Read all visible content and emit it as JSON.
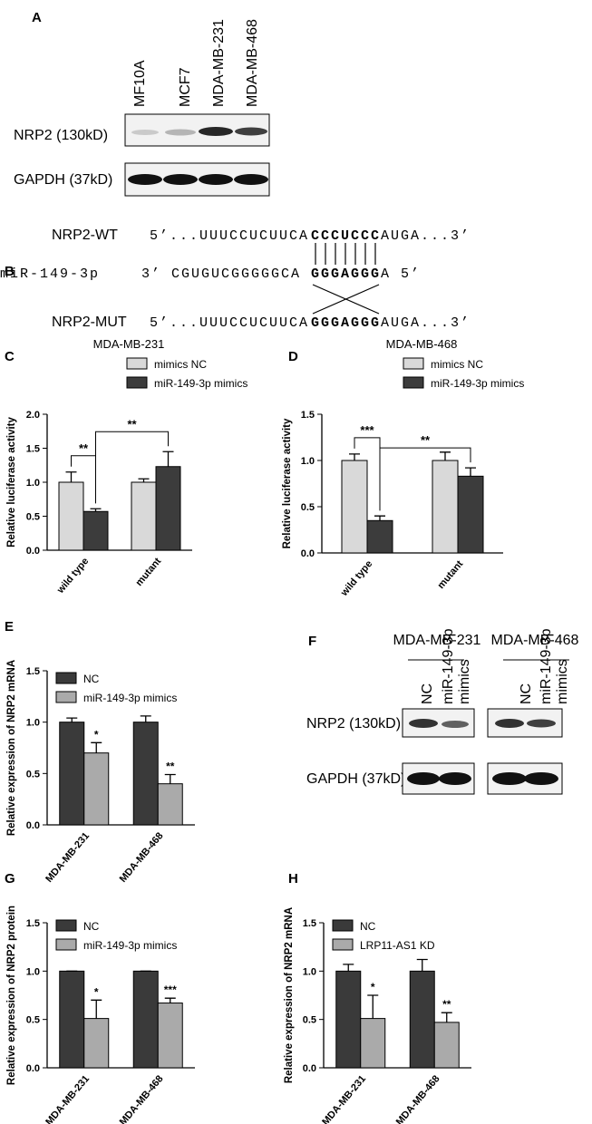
{
  "panel_labels": [
    "A",
    "B",
    "C",
    "D",
    "E",
    "F",
    "G",
    "H"
  ],
  "blot_a": {
    "lanes": [
      "MF10A",
      "MCF7",
      "MDA-MB-231",
      "MDA-MB-468"
    ],
    "rows": [
      "NRP2 (130kD)",
      "GAPDH (37kD)"
    ]
  },
  "sequences": {
    "wt": {
      "name": "NRP2-WT",
      "parts": [
        "5’...UUUCCUCUUCA",
        "CCCUCCC",
        "AUGA...3’"
      ]
    },
    "mir": {
      "name": "miR-149-3p",
      "parts": [
        "3’  CGUGUCGGGGGCA",
        "GGGAGGG",
        "A  5’"
      ]
    },
    "mut": {
      "name": "NRP2-MUT",
      "parts": [
        "5’...UUUCCUCUUCA",
        "GGGAGGG",
        "AUGA...3’"
      ]
    }
  },
  "blot_f": {
    "groups": [
      "MDA-MB-231",
      "MDA-MB-468"
    ],
    "lanes": [
      [
        "NC"
      ],
      [
        "miR-149-3p",
        "mimics"
      ]
    ],
    "rows": [
      "NRP2 (130kD)",
      "GAPDH (37kD)"
    ]
  },
  "chart_data": [
    {
      "type": "bar",
      "title": "MDA-MB-231",
      "y_label": "Relative luciferase activity",
      "categories": [
        "wild type",
        "mutant"
      ],
      "series": [
        {
          "name": "mimics NC",
          "color": "#d9d9d9",
          "values": [
            1.0,
            1.0
          ],
          "errors": [
            0.15,
            0.05
          ]
        },
        {
          "name": "miR-149-3p mimics",
          "color": "#3c3c3c",
          "values": [
            0.57,
            1.23
          ],
          "errors": [
            0.04,
            0.22
          ]
        }
      ],
      "annotations": [
        "**",
        "**"
      ],
      "ylim": [
        0,
        2
      ],
      "yticks": [
        {
          "value": 0,
          "label": "0.0"
        },
        {
          "value": 0.5,
          "label": "0.5"
        },
        {
          "value": 1,
          "label": "1.0"
        },
        {
          "value": 1.5,
          "label": "1.5"
        },
        {
          "value": 2,
          "label": "2.0"
        }
      ]
    },
    {
      "type": "bar",
      "title": "MDA-MB-468",
      "y_label": "Relative luciferase activity",
      "categories": [
        "wild type",
        "mutant"
      ],
      "series": [
        {
          "name": "mimics NC",
          "color": "#d9d9d9",
          "values": [
            1.0,
            1.0
          ],
          "errors": [
            0.07,
            0.09
          ]
        },
        {
          "name": "miR-149-3p mimics",
          "color": "#3c3c3c",
          "values": [
            0.35,
            0.83
          ],
          "errors": [
            0.05,
            0.09
          ]
        }
      ],
      "annotations": [
        "***",
        "**"
      ],
      "ylim": [
        0,
        1.5
      ],
      "yticks": [
        {
          "value": 0,
          "label": "0.0"
        },
        {
          "value": 0.5,
          "label": "0.5"
        },
        {
          "value": 1,
          "label": "1.0"
        },
        {
          "value": 1.5,
          "label": "1.5"
        }
      ]
    },
    {
      "type": "bar",
      "y_label": "Relative expression of NRP2 mRNA",
      "categories": [
        "MDA-MB-231",
        "MDA-MB-468"
      ],
      "series": [
        {
          "name": "NC",
          "color": "#3a3a3a",
          "values": [
            1.0,
            1.0
          ],
          "errors": [
            0.04,
            0.06
          ]
        },
        {
          "name": "miR-149-3p mimics",
          "color": "#aaaaaa",
          "values": [
            0.7,
            0.4
          ],
          "errors": [
            0.1,
            0.09
          ],
          "annotations": [
            "*",
            "**"
          ]
        }
      ],
      "ylim": [
        0,
        1.5
      ],
      "yticks": [
        {
          "value": 0,
          "label": "0.0"
        },
        {
          "value": 0.5,
          "label": "0.5"
        },
        {
          "value": 1,
          "label": "1.0"
        },
        {
          "value": 1.5,
          "label": "1.5"
        }
      ]
    },
    {
      "type": "bar",
      "y_label": "Relative expression of NRP2 protein",
      "categories": [
        "MDA-MB-231",
        "MDA-MB-468"
      ],
      "series": [
        {
          "name": "NC",
          "color": "#3a3a3a",
          "values": [
            1.0,
            1.0
          ],
          "errors": [
            0,
            0
          ]
        },
        {
          "name": "miR-149-3p mimics",
          "color": "#aaaaaa",
          "values": [
            0.51,
            0.67
          ],
          "errors": [
            0.19,
            0.05
          ],
          "annotations": [
            "*",
            "***"
          ]
        }
      ],
      "ylim": [
        0,
        1.5
      ],
      "yticks": [
        {
          "value": 0,
          "label": "0.0"
        },
        {
          "value": 0.5,
          "label": "0.5"
        },
        {
          "value": 1,
          "label": "1.0"
        },
        {
          "value": 1.5,
          "label": "1.5"
        }
      ]
    },
    {
      "type": "bar",
      "y_label": "Relative expression of NRP2 mRNA",
      "categories": [
        "MDA-MB-231",
        "MDA-MB-468"
      ],
      "series": [
        {
          "name": "NC",
          "color": "#3a3a3a",
          "values": [
            1.0,
            1.0
          ],
          "errors": [
            0.07,
            0.12
          ]
        },
        {
          "name": "LRP11-AS1 KD",
          "color": "#aaaaaa",
          "values": [
            0.51,
            0.47
          ],
          "errors": [
            0.24,
            0.1
          ],
          "annotations": [
            "*",
            "**"
          ]
        }
      ],
      "ylim": [
        0,
        1.5
      ],
      "yticks": [
        {
          "value": 0,
          "label": "0.0"
        },
        {
          "value": 0.5,
          "label": "0.5"
        },
        {
          "value": 1,
          "label": "1.0"
        },
        {
          "value": 1.5,
          "label": "1.5"
        }
      ]
    }
  ]
}
